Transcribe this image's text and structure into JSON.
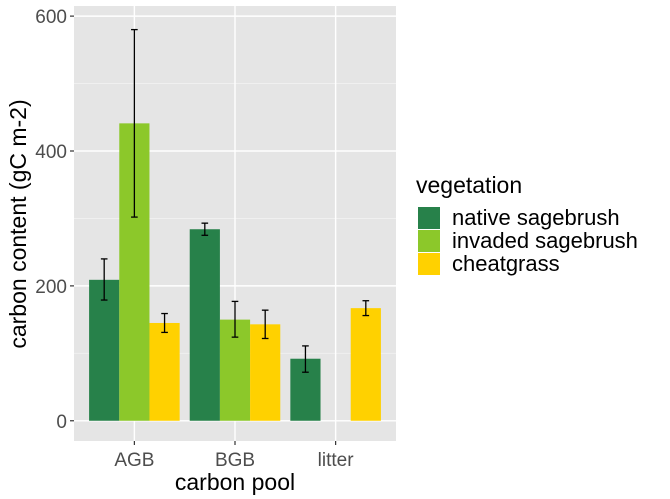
{
  "chart_data": {
    "type": "bar",
    "xlabel": "carbon pool",
    "ylabel": "carbon content (gC m-2)",
    "categories": [
      "AGB",
      "BGB",
      "litter"
    ],
    "ylim": [
      -30,
      615
    ],
    "yticks": [
      0,
      200,
      400,
      600
    ],
    "grid": true,
    "legend_title": "vegetation",
    "legend_position": "right",
    "series": [
      {
        "name": "native sagebrush",
        "color": "#27814A",
        "values": [
          209,
          284,
          92
        ],
        "error_low": [
          179,
          275,
          72
        ],
        "error_high": [
          240,
          293,
          111
        ]
      },
      {
        "name": "invaded sagebrush",
        "color": "#8CC82A",
        "values": [
          441,
          150,
          null
        ],
        "error_low": [
          302,
          124,
          null
        ],
        "error_high": [
          580,
          177,
          null
        ]
      },
      {
        "name": "cheatgrass",
        "color": "#FFD100",
        "values": [
          145,
          143,
          167
        ],
        "error_low": [
          131,
          122,
          156
        ],
        "error_high": [
          159,
          164,
          178
        ]
      }
    ]
  }
}
